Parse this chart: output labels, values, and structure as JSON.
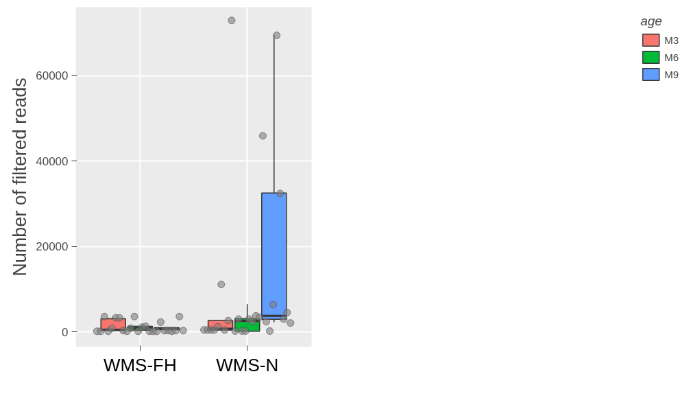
{
  "chart_data": {
    "type": "box",
    "ylabel": "Number of filtered reads",
    "legend_title": "age",
    "categories": [
      "WMS-FH",
      "WMS-N"
    ],
    "ylim": [
      -3500,
      76000
    ],
    "yticks": [
      0,
      20000,
      40000,
      60000
    ],
    "grid": true,
    "legend": "right",
    "marker": "circle",
    "series": [
      {
        "name": "M3",
        "color": "#f8766d",
        "boxes": [
          {
            "low": 150,
            "q1": 300,
            "median": 500,
            "q3": 3100,
            "high": 3400
          },
          {
            "low": 400,
            "q1": 450,
            "median": 750,
            "q3": 2700,
            "high": 2700
          }
        ]
      },
      {
        "name": "M6",
        "color": "#00ba38",
        "boxes": [
          {
            "low": 150,
            "q1": 400,
            "median": 900,
            "q3": 1300,
            "high": 1300
          },
          {
            "low": 100,
            "q1": 150,
            "median": 2600,
            "q3": 3100,
            "high": 6500
          }
        ]
      },
      {
        "name": "M9",
        "color": "#619cff",
        "boxes": [
          {
            "low": 150,
            "q1": 500,
            "median": 800,
            "q3": 1000,
            "high": 1000
          },
          {
            "low": 2300,
            "q1": 2950,
            "median": 3750,
            "q3": 32500,
            "high": 69500
          }
        ]
      },
      {
        "type": "scatter",
        "color": "#7f7f7f",
        "x": [
          "WMS-FH",
          "WMS-FH",
          "WMS-FH",
          "WMS-FH",
          "WMS-FH",
          "WMS-FH",
          "WMS-FH",
          "WMS-FH",
          "WMS-FH",
          "WMS-FH",
          "WMS-FH",
          "WMS-FH",
          "WMS-FH",
          "WMS-FH",
          "WMS-FH",
          "WMS-FH",
          "WMS-FH",
          "WMS-FH",
          "WMS-FH",
          "WMS-FH",
          "WMS-FH",
          "WMS-FH",
          "WMS-FH",
          "WMS-FH",
          "WMS-N",
          "WMS-N",
          "WMS-N",
          "WMS-N",
          "WMS-N",
          "WMS-N",
          "WMS-N",
          "WMS-N",
          "WMS-N",
          "WMS-N",
          "WMS-N",
          "WMS-N",
          "WMS-N",
          "WMS-N",
          "WMS-N",
          "WMS-N",
          "WMS-N",
          "WMS-N",
          "WMS-N",
          "WMS-N",
          "WMS-N",
          "WMS-N",
          "WMS-N",
          "WMS-N",
          "WMS-N",
          "WMS-N"
        ],
        "values": [
          150,
          150,
          3600,
          150,
          850,
          3300,
          3300,
          300,
          150,
          850,
          3600,
          150,
          1100,
          1300,
          150,
          150,
          150,
          2300,
          300,
          300,
          150,
          300,
          3600,
          300,
          470,
          470,
          450,
          450,
          1200,
          11100,
          450,
          2650,
          72900,
          200,
          3000,
          200,
          200,
          3000,
          2400,
          3750,
          3400,
          45900,
          2400,
          200,
          6400,
          69400,
          32400,
          3000,
          4550,
          2100
        ]
      }
    ]
  }
}
